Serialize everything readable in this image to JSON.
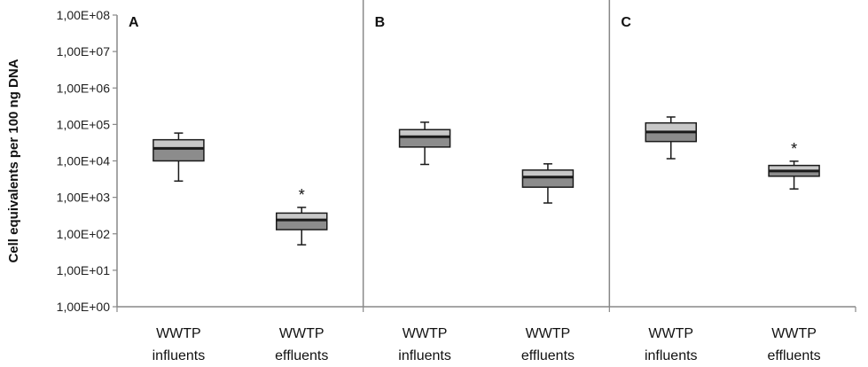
{
  "chart_data": {
    "type": "box",
    "ylabel": "Cell equivalents per 100 ng DNA",
    "yscale": "log",
    "ylim": [
      1,
      100000000
    ],
    "yticks": [
      "1,00E+00",
      "1,00E+01",
      "1,00E+02",
      "1,00E+03",
      "1,00E+04",
      "1,00E+05",
      "1,00E+06",
      "1,00E+07",
      "1,00E+08"
    ],
    "grid": false,
    "panels": [
      {
        "label": "A",
        "boxes": [
          {
            "category": [
              "WWTP",
              "influents"
            ],
            "min": 2800,
            "q1": 10000,
            "median": 22000,
            "q3": 38000,
            "max": 58000,
            "significant": false
          },
          {
            "category": [
              "WWTP",
              "effluents"
            ],
            "min": 50,
            "q1": 130,
            "median": 240,
            "q3": 370,
            "max": 530,
            "significant": true
          }
        ]
      },
      {
        "label": "B",
        "boxes": [
          {
            "category": [
              "WWTP",
              "influents"
            ],
            "min": 8000,
            "q1": 24000,
            "median": 46000,
            "q3": 72000,
            "max": 115000,
            "significant": false
          },
          {
            "category": [
              "WWTP",
              "effluents"
            ],
            "min": 700,
            "q1": 1900,
            "median": 3600,
            "q3": 5600,
            "max": 8300,
            "significant": false
          }
        ]
      },
      {
        "label": "C",
        "boxes": [
          {
            "category": [
              "WWTP",
              "influents"
            ],
            "min": 11500,
            "q1": 34000,
            "median": 62000,
            "q3": 110000,
            "max": 160000,
            "significant": false
          },
          {
            "category": [
              "WWTP",
              "effluents"
            ],
            "min": 1700,
            "q1": 3800,
            "median": 5300,
            "q3": 7500,
            "max": 9800,
            "significant": true
          }
        ]
      }
    ],
    "significance_marker": "*",
    "colors": {
      "box_lower": "#8c8c8c",
      "box_upper": "#c8c8c8",
      "median": "#1a1a1a",
      "outline": "#1a1a1a",
      "axis": "#888888"
    }
  }
}
